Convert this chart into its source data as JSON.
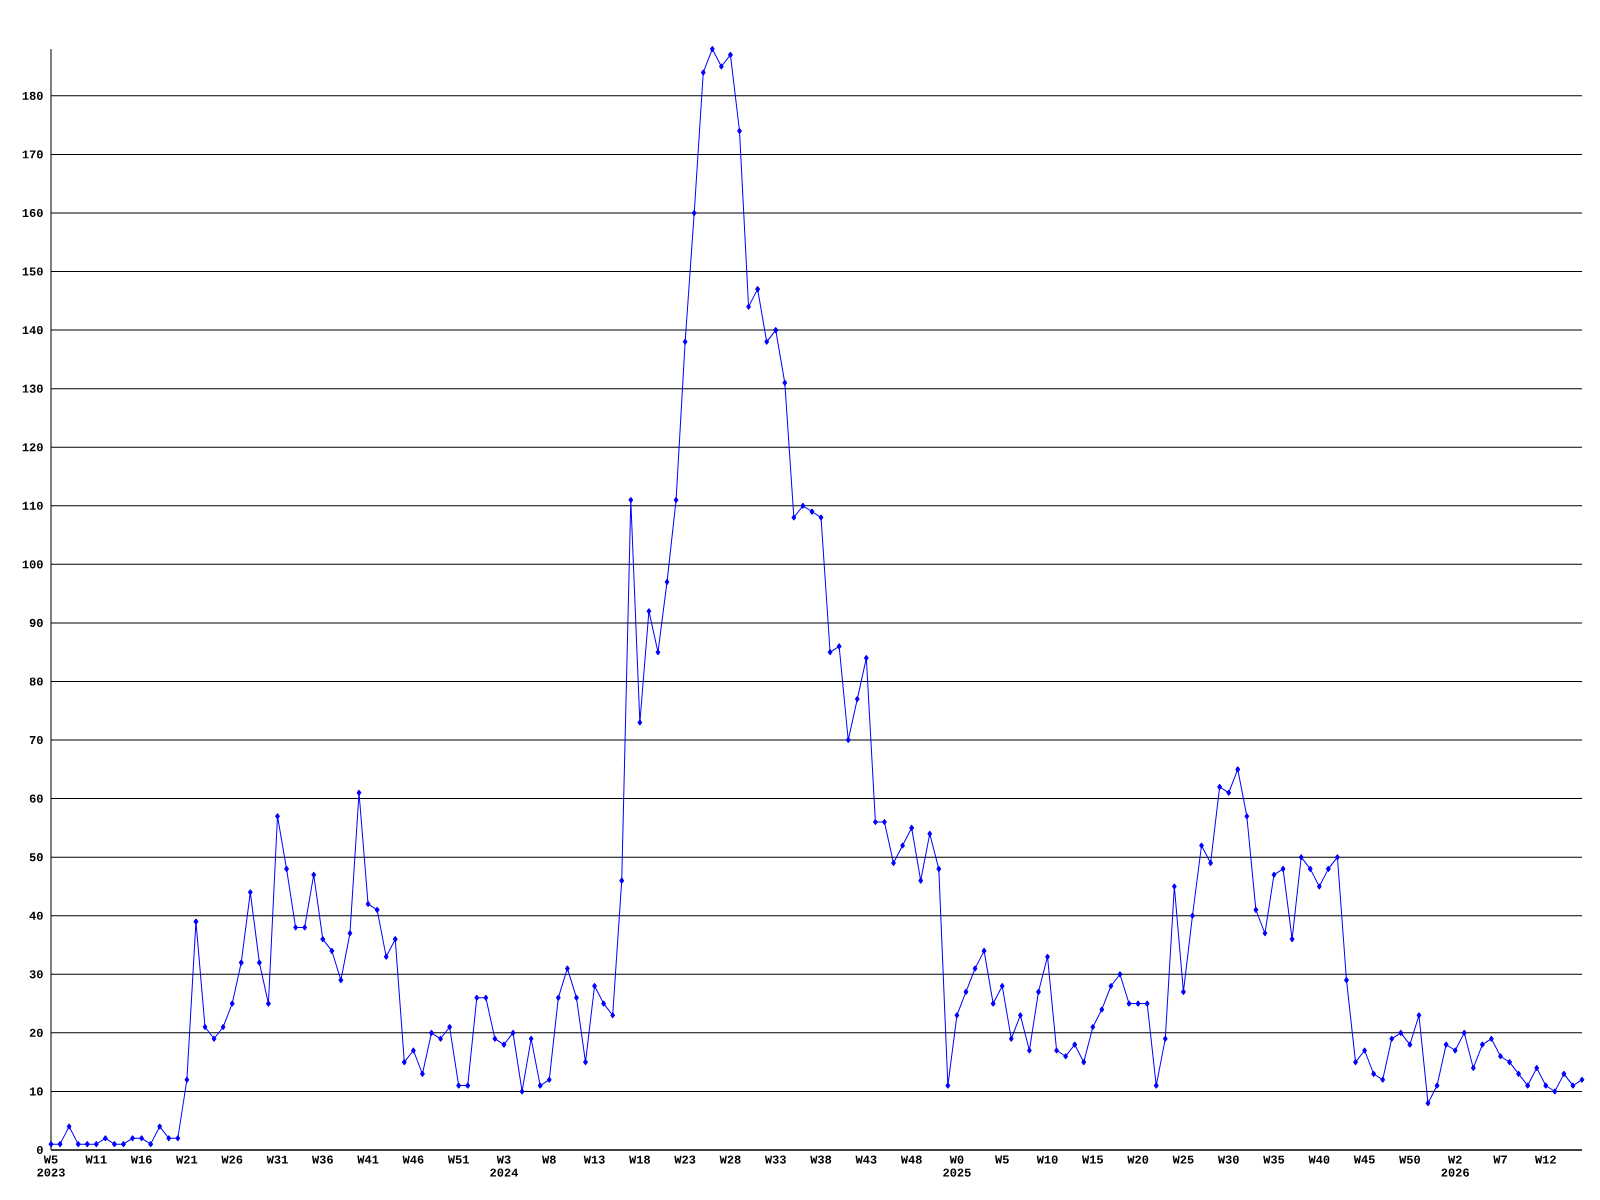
{
  "chart_data": {
    "type": "line",
    "categories": [
      "W5 2023",
      null,
      null,
      null,
      null,
      "W11",
      null,
      null,
      null,
      null,
      "W16",
      null,
      null,
      null,
      null,
      "W21",
      null,
      null,
      null,
      null,
      "W26",
      null,
      null,
      null,
      null,
      "W31",
      null,
      null,
      null,
      null,
      "W36",
      null,
      null,
      null,
      null,
      "W41",
      null,
      null,
      null,
      null,
      "W46",
      null,
      null,
      null,
      null,
      "W51",
      null,
      null,
      null,
      null,
      "W3 2024",
      null,
      null,
      null,
      null,
      "W8",
      null,
      null,
      null,
      null,
      "W13",
      null,
      null,
      null,
      null,
      "W18",
      null,
      null,
      null,
      null,
      "W23",
      null,
      null,
      null,
      null,
      "W28",
      null,
      null,
      null,
      null,
      "W33",
      null,
      null,
      null,
      null,
      "W38",
      null,
      null,
      null,
      null,
      "W43",
      null,
      null,
      null,
      null,
      "W48",
      null,
      null,
      null,
      null,
      "W0 2025",
      null,
      null,
      null,
      null,
      "W5",
      null,
      null,
      null,
      null,
      "W10",
      null,
      null,
      null,
      null,
      "W15",
      null,
      null,
      null,
      null,
      "W20",
      null,
      null,
      null,
      null,
      "W25",
      null,
      null,
      null,
      null,
      "W30",
      null,
      null,
      null,
      null,
      "W35",
      null,
      null,
      null,
      null,
      "W40",
      null,
      null,
      null,
      null,
      "W45",
      null,
      null,
      null,
      null,
      "W50",
      null,
      null,
      null,
      null,
      "W2 2026",
      null,
      null,
      null,
      null,
      "W7",
      null,
      null,
      null,
      null,
      "W12",
      null,
      null,
      null,
      null
    ],
    "values": [
      1,
      1,
      4,
      1,
      1,
      1,
      2,
      1,
      1,
      2,
      2,
      1,
      4,
      2,
      2,
      12,
      39,
      21,
      19,
      21,
      25,
      32,
      44,
      32,
      25,
      57,
      48,
      38,
      38,
      47,
      36,
      34,
      29,
      37,
      61,
      42,
      41,
      33,
      36,
      15,
      17,
      13,
      20,
      19,
      21,
      11,
      11,
      26,
      26,
      19,
      18,
      20,
      10,
      19,
      11,
      12,
      26,
      31,
      26,
      15,
      28,
      25,
      23,
      46,
      111,
      73,
      92,
      85,
      97,
      111,
      138,
      160,
      184,
      188,
      185,
      187,
      174,
      144,
      147,
      138,
      140,
      131,
      108,
      110,
      109,
      108,
      85,
      86,
      70,
      77,
      84,
      56,
      56,
      49,
      52,
      55,
      46,
      54,
      48,
      11,
      23,
      27,
      31,
      34,
      25,
      28,
      19,
      23,
      17,
      27,
      33,
      17,
      16,
      18,
      15,
      21,
      24,
      28,
      30,
      25,
      25,
      25,
      11,
      19,
      45,
      27,
      40,
      52,
      49,
      62,
      61,
      65,
      57,
      41,
      37,
      47,
      48,
      36,
      50,
      48,
      45,
      48,
      50,
      29,
      15,
      17,
      13,
      12,
      19,
      20,
      18,
      23,
      8,
      11,
      18,
      17,
      20,
      14,
      18,
      19,
      16,
      15,
      13,
      11,
      14,
      11,
      10,
      13,
      11,
      12
    ],
    "color": "#0000ff",
    "ylim": [
      0,
      188
    ],
    "yticks": [
      0,
      10,
      20,
      30,
      40,
      50,
      60,
      70,
      80,
      90,
      100,
      110,
      120,
      130,
      140,
      150,
      160,
      170,
      180
    ],
    "grid": "y",
    "marker": "diamond",
    "line_style": "solid"
  }
}
